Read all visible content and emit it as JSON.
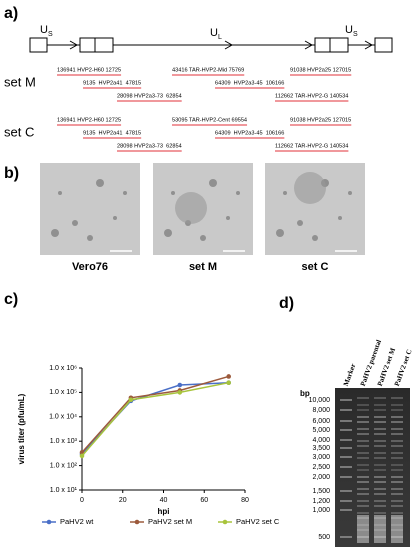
{
  "panel_a": {
    "label": "a)",
    "regions": [
      {
        "name": "U",
        "sub": "S"
      },
      {
        "name": "U",
        "sub": "L"
      },
      {
        "name": "U",
        "sub": "S"
      }
    ],
    "sets": [
      {
        "name": "set M",
        "rows": [
          [
            "136941 HVP2-H60 12725",
            "43416 TAR-HVP2-Mid 75769",
            "91038 HVP2a25 127015"
          ],
          [
            "9135  HVP2a41  47815",
            "64309  HVP2a3-45  106166"
          ],
          [
            "28098 HVP2a3-73  62854",
            "112662 TAR-HVP2-G 140534"
          ]
        ]
      },
      {
        "name": "set C",
        "rows": [
          [
            "136941 HVP2-H60 12725",
            "53095 TAR-HVP2-Cent 69554",
            "91038 HVP2a25 127015"
          ],
          [
            "9135  HVP2a41  47815",
            "64309  HVP2a3-45  106166"
          ],
          [
            "28098 HVP2a3-73  62854",
            "112662 TAR-HVP2-G 140534"
          ]
        ]
      }
    ]
  },
  "panel_b": {
    "label": "b)",
    "images": [
      "Vero76",
      "set M",
      "set C"
    ]
  },
  "chart_data": {
    "type": "line",
    "panel_label": "c)",
    "x_label": "hpi",
    "y_label": "virus titer (pfu/mL)",
    "x": [
      0,
      24,
      48,
      72
    ],
    "xlim": [
      0,
      80
    ],
    "xticks": [
      0,
      20,
      40,
      60,
      80
    ],
    "ylim": [
      10,
      1000000
    ],
    "log_y": true,
    "yticks": [
      {
        "value": 10,
        "label": "1.0 x 10¹"
      },
      {
        "value": 100,
        "label": "1.0 x 10²"
      },
      {
        "value": 1000,
        "label": "1.0 x 10³"
      },
      {
        "value": 10000,
        "label": "1.0 x 10⁴"
      },
      {
        "value": 100000,
        "label": "1.0 x 10⁵"
      },
      {
        "value": 1000000,
        "label": "1.0 x 10⁶"
      }
    ],
    "series": [
      {
        "name": "PaHV2 wt",
        "color": "#4a6fc7",
        "values": [
          300,
          45000,
          200000,
          250000
        ]
      },
      {
        "name": "PaHV2 set M",
        "color": "#9c5a3c",
        "values": [
          350,
          60000,
          120000,
          450000
        ]
      },
      {
        "name": "PaHV2 set C",
        "color": "#a8c43c",
        "values": [
          250,
          50000,
          100000,
          250000
        ]
      }
    ]
  },
  "panel_d": {
    "label": "d)",
    "unit": "bp",
    "lanes": [
      "Marker",
      "PaHV2 parental",
      "PaHV2 set M",
      "PaHV2 set C"
    ],
    "sizes": [
      "10,000",
      "8,000",
      "6,000",
      "5,000",
      "4,000",
      "3,500",
      "3,000",
      "2,500",
      "2,000",
      "1,500",
      "1,200",
      "1,000",
      "500"
    ]
  }
}
